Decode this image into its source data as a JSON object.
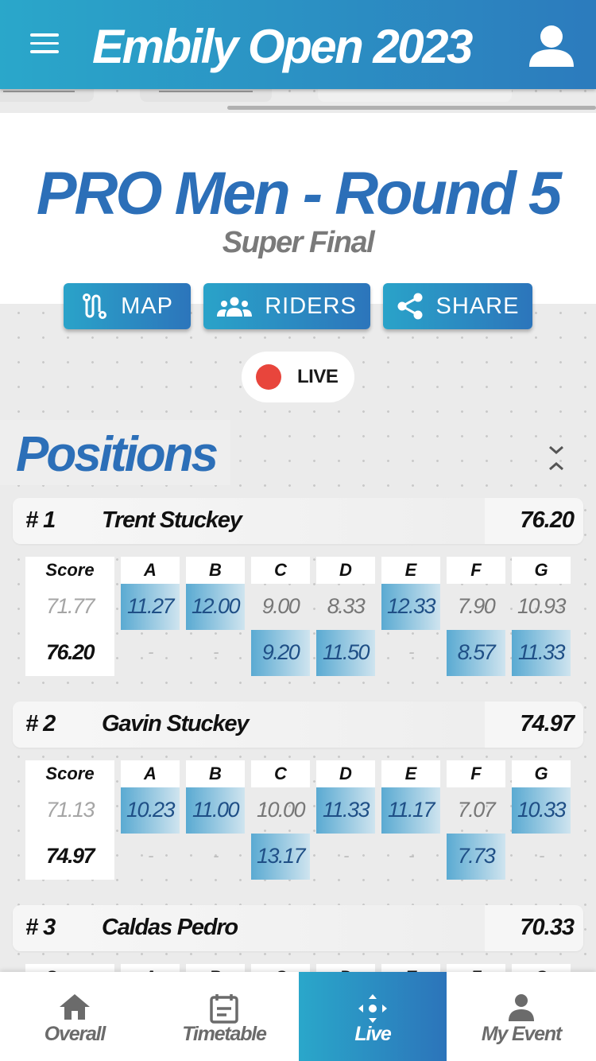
{
  "header": {
    "title": "Embily Open 2023",
    "menu_icon": "menu-icon",
    "user_icon": "user-icon"
  },
  "event": {
    "title": "PRO Men - Round 5",
    "subtitle": "Super Final"
  },
  "actions": [
    {
      "label": "MAP",
      "icon": "route-icon"
    },
    {
      "label": "RIDERS",
      "icon": "group-icon"
    },
    {
      "label": "SHARE",
      "icon": "share-icon"
    }
  ],
  "live": {
    "label": "LIVE",
    "color": "#e8453c"
  },
  "positions": {
    "title": "Positions"
  },
  "score_columns": [
    "Score",
    "A",
    "B",
    "C",
    "D",
    "E",
    "F",
    "G"
  ],
  "riders": [
    {
      "rank": "# 1",
      "name": "Trent Stuckey",
      "total": "76.20",
      "prev_score": "71.77",
      "score": "76.20",
      "run1": [
        "11.27",
        "12.00",
        "9.00",
        "8.33",
        "12.33",
        "7.90",
        "10.93"
      ],
      "run1_highlight": [
        true,
        true,
        false,
        false,
        true,
        false,
        false
      ],
      "run2": [
        "-",
        "-",
        "9.20",
        "11.50",
        "-",
        "8.57",
        "11.33"
      ],
      "run2_highlight": [
        false,
        false,
        true,
        true,
        false,
        true,
        true
      ]
    },
    {
      "rank": "# 2",
      "name": "Gavin Stuckey",
      "total": "74.97",
      "prev_score": "71.13",
      "score": "74.97",
      "run1": [
        "10.23",
        "11.00",
        "10.00",
        "11.33",
        "11.17",
        "7.07",
        "10.33"
      ],
      "run1_highlight": [
        true,
        true,
        false,
        true,
        true,
        false,
        true
      ],
      "run2": [
        "-",
        "-",
        "13.17",
        "-",
        "-",
        "7.73",
        "-"
      ],
      "run2_highlight": [
        false,
        false,
        true,
        false,
        false,
        true,
        false
      ]
    },
    {
      "rank": "# 3",
      "name": "Caldas Pedro",
      "total": "70.33"
    }
  ],
  "bottom_nav": [
    {
      "label": "Overall",
      "icon": "home-icon"
    },
    {
      "label": "Timetable",
      "icon": "calendar-icon"
    },
    {
      "label": "Live",
      "icon": "live-move-icon",
      "active": true
    },
    {
      "label": "My Event",
      "icon": "person-icon"
    }
  ],
  "colors": {
    "brand_start": "#2aa7ca",
    "brand_end": "#2c74ba",
    "title_blue": "#2c6fb8"
  }
}
